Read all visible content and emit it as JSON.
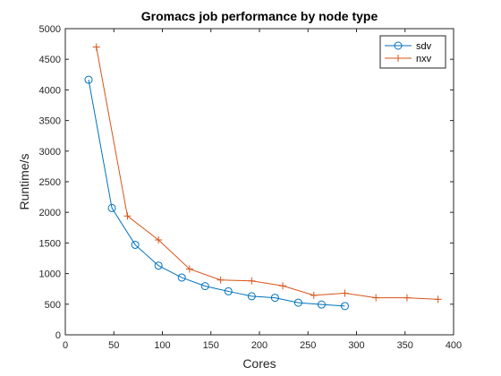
{
  "chart_data": {
    "type": "line",
    "title": "Gromacs job performance by node type",
    "xlabel": "Cores",
    "ylabel": "Runtime/s",
    "xlim": [
      0,
      400
    ],
    "ylim": [
      0,
      5000
    ],
    "xticks": [
      0,
      50,
      100,
      150,
      200,
      250,
      300,
      350,
      400
    ],
    "yticks": [
      0,
      500,
      1000,
      1500,
      2000,
      2500,
      3000,
      3500,
      4000,
      4500,
      5000
    ],
    "grid": false,
    "legend_position": "top-right",
    "series": [
      {
        "name": "sdv",
        "color": "#0072BD",
        "marker": "circle",
        "x": [
          24,
          48,
          72,
          96,
          120,
          144,
          168,
          192,
          216,
          240,
          264,
          288
        ],
        "y": [
          4165,
          2070,
          1470,
          1130,
          935,
          795,
          710,
          630,
          605,
          525,
          495,
          470
        ]
      },
      {
        "name": "nxv",
        "color": "#D95319",
        "marker": "plus",
        "x": [
          32,
          64,
          96,
          128,
          160,
          192,
          224,
          256,
          288,
          320,
          352,
          384
        ],
        "y": [
          4700,
          1940,
          1550,
          1075,
          895,
          880,
          800,
          645,
          680,
          605,
          605,
          580
        ]
      }
    ]
  }
}
